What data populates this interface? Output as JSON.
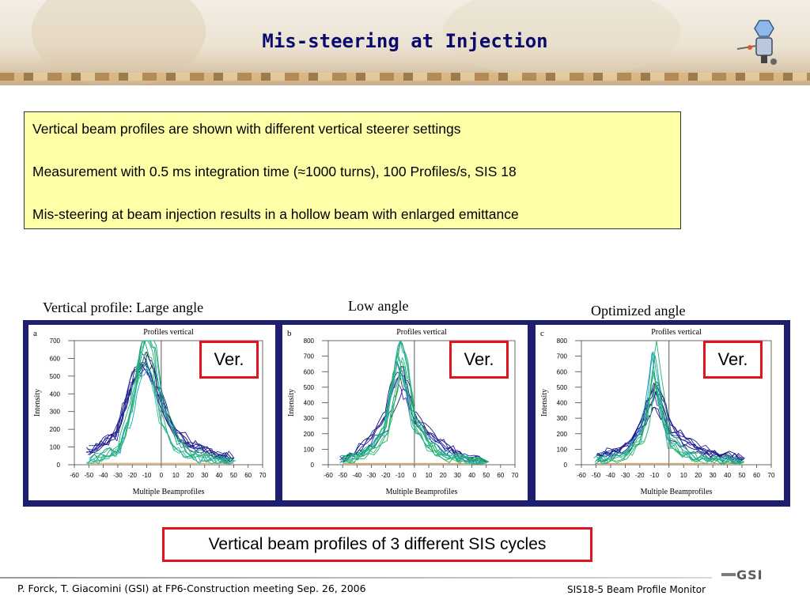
{
  "slide": {
    "title": "Mis-steering at Injection",
    "info_lines": [
      "Vertical beam profiles are shown with different vertical steerer settings",
      "Measurement with 0.5 ms integration time (≈1000 turns), 100 Profiles/s, SIS 18",
      "Mis-steering at beam injection results in a hollow beam with enlarged emittance"
    ],
    "captions": [
      "Vertical profile: Large angle",
      "Low angle",
      "Optimized angle"
    ],
    "ver_label": "Ver.",
    "bottom_box": "Vertical beam profiles of 3 different SIS cycles",
    "footer_left": "P. Forck, T. Giacomini (GSI) at FP6-Construction meeting Sep. 26, 2006",
    "footer_right": "SIS18-5 Beam Profile Monitor",
    "logo_text": "GSI"
  },
  "colors": {
    "title": "#0a0a6e",
    "frame": "#1e1e6e",
    "infobox_bg": "#ffffa8",
    "box_border": "#e0141e",
    "series_dark": "#1a1a8a",
    "series_green": "#1fae5a",
    "series_cyan": "#1aa0c0"
  },
  "chart_data": [
    {
      "type": "line",
      "panel": "a",
      "title": "Profiles vertical",
      "xlabel": "Multiple Beamprofiles",
      "ylabel": "Intensity",
      "xticks": [
        "-60",
        "-50",
        "-40",
        "-30",
        "-20",
        "-10",
        "0",
        "10",
        "20",
        "30",
        "40",
        "50",
        "60",
        "70"
      ],
      "yticks": [
        "0",
        "100",
        "200",
        "300",
        "400",
        "500",
        "600",
        "700"
      ],
      "xlim": [
        -60,
        70
      ],
      "ylim": [
        0,
        700
      ],
      "series": [
        {
          "group": "dark",
          "count": 8,
          "x": [
            -50,
            -40,
            -30,
            -25,
            -20,
            -15,
            -10,
            -5,
            0,
            10,
            20,
            30,
            40,
            50
          ],
          "y": [
            80,
            120,
            180,
            330,
            480,
            560,
            600,
            520,
            380,
            200,
            120,
            90,
            60,
            40
          ]
        },
        {
          "group": "green",
          "count": 8,
          "x": [
            -50,
            -40,
            -30,
            -25,
            -20,
            -15,
            -10,
            -5,
            0,
            10,
            20,
            30,
            40,
            50
          ],
          "y": [
            30,
            50,
            80,
            180,
            330,
            560,
            690,
            560,
            300,
            120,
            60,
            40,
            30,
            20
          ]
        }
      ]
    },
    {
      "type": "line",
      "panel": "b",
      "title": "Profiles vertical",
      "xlabel": "Multiple Beamprofiles",
      "ylabel": "Intensity",
      "xticks": [
        "-60",
        "-50",
        "-40",
        "-30",
        "-20",
        "-10",
        "0",
        "10",
        "20",
        "30",
        "40",
        "50",
        "60",
        "70"
      ],
      "yticks": [
        "0",
        "100",
        "200",
        "300",
        "400",
        "500",
        "600",
        "700",
        "800"
      ],
      "xlim": [
        -60,
        70
      ],
      "ylim": [
        0,
        800
      ],
      "series": [
        {
          "group": "dark",
          "count": 6,
          "x": [
            -50,
            -40,
            -30,
            -20,
            -15,
            -10,
            -5,
            0,
            10,
            20,
            30,
            40,
            50
          ],
          "y": [
            30,
            80,
            150,
            260,
            420,
            560,
            480,
            300,
            200,
            120,
            70,
            40,
            20
          ]
        },
        {
          "group": "green",
          "count": 10,
          "x": [
            -50,
            -40,
            -30,
            -20,
            -15,
            -10,
            -5,
            0,
            10,
            20,
            30,
            40,
            50
          ],
          "y": [
            30,
            50,
            100,
            220,
            480,
            700,
            560,
            280,
            120,
            60,
            40,
            30,
            20
          ]
        }
      ]
    },
    {
      "type": "line",
      "panel": "c",
      "title": "Profiles vertical",
      "xlabel": "Multiple Beamprofiles",
      "ylabel": "Intensity",
      "xticks": [
        "-60",
        "-50",
        "-40",
        "-30",
        "-20",
        "-10",
        "0",
        "10",
        "20",
        "30",
        "40",
        "50",
        "60",
        "70"
      ],
      "yticks": [
        "0",
        "100",
        "200",
        "300",
        "400",
        "500",
        "600",
        "700",
        "800"
      ],
      "xlim": [
        -60,
        70
      ],
      "ylim": [
        0,
        800
      ],
      "series": [
        {
          "group": "dark",
          "count": 8,
          "x": [
            -50,
            -40,
            -30,
            -20,
            -15,
            -10,
            -5,
            0,
            10,
            20,
            30,
            40,
            50
          ],
          "y": [
            50,
            80,
            120,
            250,
            380,
            460,
            360,
            220,
            150,
            100,
            70,
            50,
            40
          ]
        },
        {
          "group": "green",
          "count": 8,
          "x": [
            -50,
            -40,
            -30,
            -20,
            -15,
            -10,
            -5,
            0,
            10,
            20,
            30,
            40,
            50
          ],
          "y": [
            30,
            40,
            70,
            160,
            330,
            700,
            380,
            160,
            80,
            50,
            40,
            30,
            20
          ]
        }
      ]
    }
  ]
}
